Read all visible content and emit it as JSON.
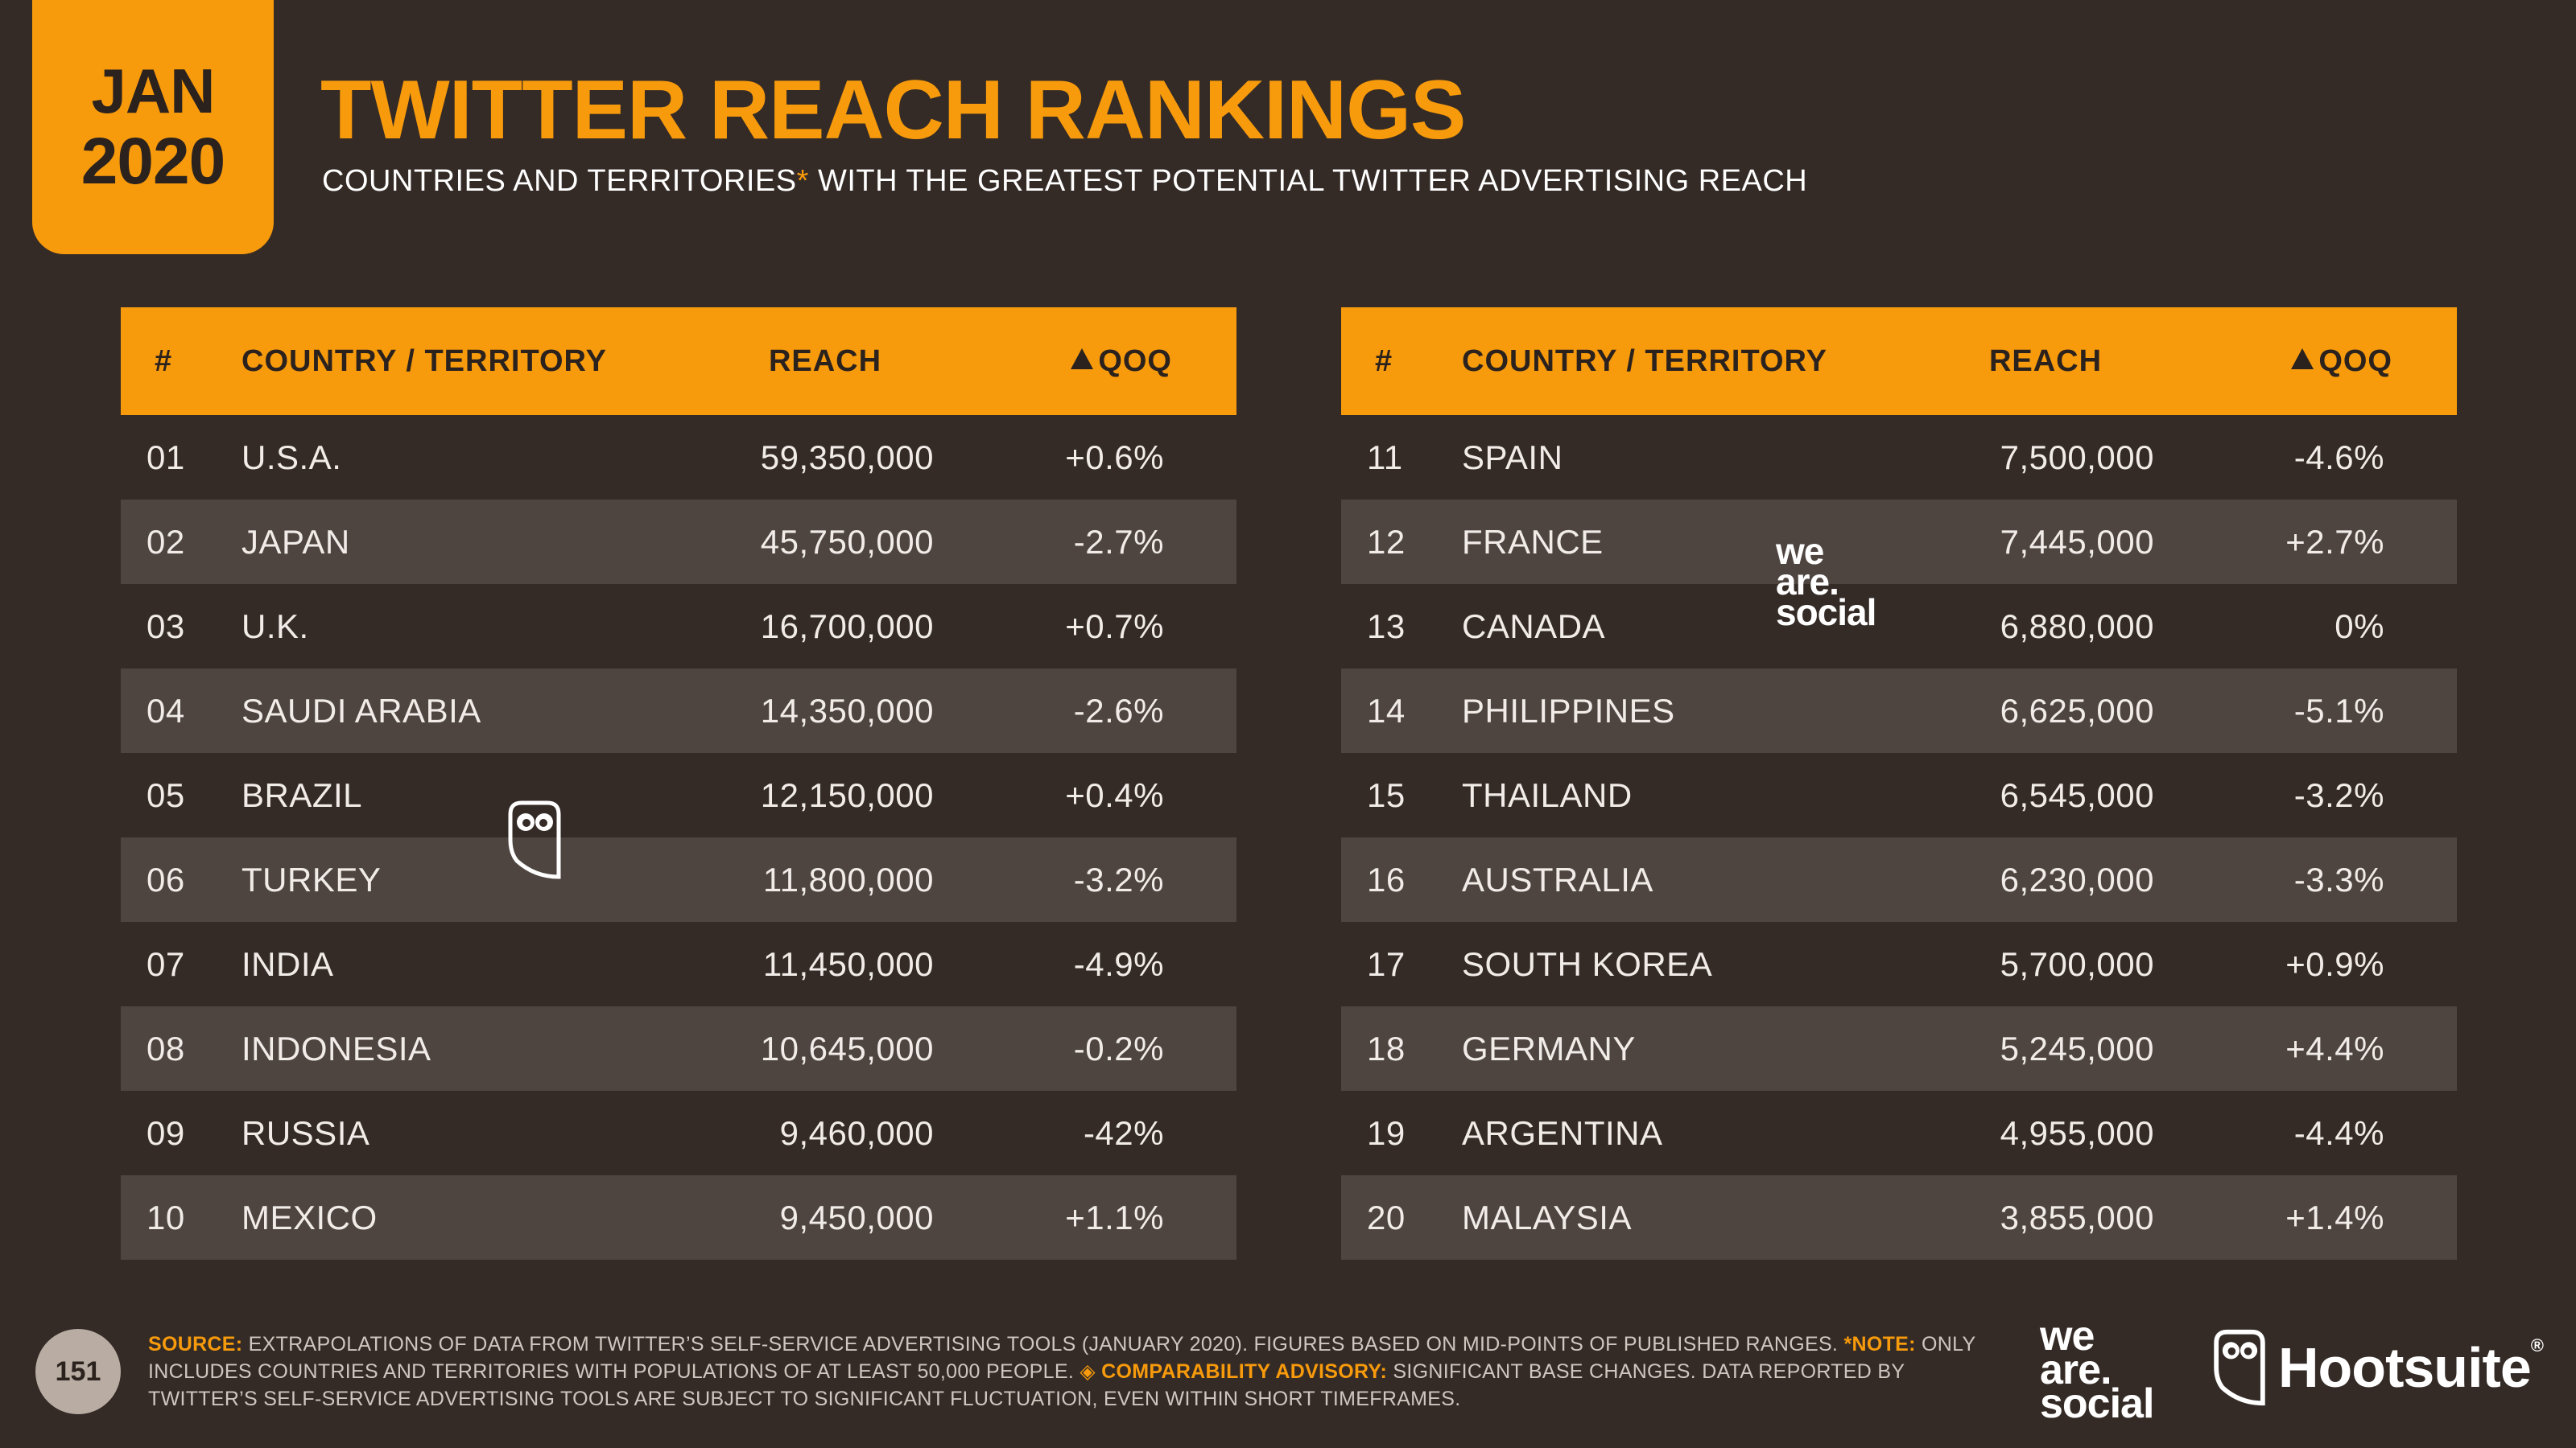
{
  "badge": {
    "month": "JAN",
    "year": "2020"
  },
  "title": "TWITTER REACH RANKINGS",
  "subtitle": {
    "before": "COUNTRIES AND TERRITORIES",
    "star": "*",
    "after": " WITH THE GREATEST POTENTIAL TWITTER ADVERTISING REACH"
  },
  "table_headers": {
    "num": "#",
    "country": "COUNTRY / TERRITORY",
    "reach": "REACH",
    "qoq": "QOQ"
  },
  "chart_data": {
    "type": "table",
    "columns": [
      "#",
      "COUNTRY / TERRITORY",
      "REACH",
      "QOQ"
    ],
    "rows": [
      {
        "rank": "01",
        "country": "U.S.A.",
        "reach": "59,350,000",
        "qoq": "+0.6%"
      },
      {
        "rank": "02",
        "country": "JAPAN",
        "reach": "45,750,000",
        "qoq": "-2.7%"
      },
      {
        "rank": "03",
        "country": "U.K.",
        "reach": "16,700,000",
        "qoq": "+0.7%"
      },
      {
        "rank": "04",
        "country": "SAUDI ARABIA",
        "reach": "14,350,000",
        "qoq": "-2.6%"
      },
      {
        "rank": "05",
        "country": "BRAZIL",
        "reach": "12,150,000",
        "qoq": "+0.4%"
      },
      {
        "rank": "06",
        "country": "TURKEY",
        "reach": "11,800,000",
        "qoq": "-3.2%"
      },
      {
        "rank": "07",
        "country": "INDIA",
        "reach": "11,450,000",
        "qoq": "-4.9%"
      },
      {
        "rank": "08",
        "country": "INDONESIA",
        "reach": "10,645,000",
        "qoq": "-0.2%"
      },
      {
        "rank": "09",
        "country": "RUSSIA",
        "reach": "9,460,000",
        "qoq": "-42%"
      },
      {
        "rank": "10",
        "country": "MEXICO",
        "reach": "9,450,000",
        "qoq": "+1.1%"
      },
      {
        "rank": "11",
        "country": "SPAIN",
        "reach": "7,500,000",
        "qoq": "-4.6%"
      },
      {
        "rank": "12",
        "country": "FRANCE",
        "reach": "7,445,000",
        "qoq": "+2.7%"
      },
      {
        "rank": "13",
        "country": "CANADA",
        "reach": "6,880,000",
        "qoq": "0%"
      },
      {
        "rank": "14",
        "country": "PHILIPPINES",
        "reach": "6,625,000",
        "qoq": "-5.1%"
      },
      {
        "rank": "15",
        "country": "THAILAND",
        "reach": "6,545,000",
        "qoq": "-3.2%"
      },
      {
        "rank": "16",
        "country": "AUSTRALIA",
        "reach": "6,230,000",
        "qoq": "-3.3%"
      },
      {
        "rank": "17",
        "country": "SOUTH KOREA",
        "reach": "5,700,000",
        "qoq": "+0.9%"
      },
      {
        "rank": "18",
        "country": "GERMANY",
        "reach": "5,245,000",
        "qoq": "+4.4%"
      },
      {
        "rank": "19",
        "country": "ARGENTINA",
        "reach": "4,955,000",
        "qoq": "-4.4%"
      },
      {
        "rank": "20",
        "country": "MALAYSIA",
        "reach": "3,855,000",
        "qoq": "+1.4%"
      }
    ]
  },
  "footer": {
    "page": "151",
    "source_label": "SOURCE:",
    "source_text": " EXTRAPOLATIONS OF DATA FROM TWITTER’S SELF-SERVICE ADVERTISING TOOLS (JANUARY 2020). FIGURES BASED ON MID-POINTS OF PUBLISHED RANGES. ",
    "note_label": "*NOTE:",
    "note_text": " ONLY INCLUDES COUNTRIES AND TERRITORIES WITH POPULATIONS OF AT LEAST 50,000 PEOPLE. ",
    "advisory_label": "◈ COMPARABILITY ADVISORY:",
    "advisory_text": " SIGNIFICANT BASE CHANGES. DATA REPORTED BY TWITTER’S SELF-SERVICE ADVERTISING TOOLS ARE SUBJECT TO SIGNIFICANT FLUCTUATION, EVEN WITHIN SHORT TIMEFRAMES."
  },
  "logos": {
    "we_are_social": [
      "we",
      "are.",
      "social"
    ],
    "hootsuite": "Hootsuite",
    "reg_mark": "®"
  },
  "icons": [
    "owl-icon",
    "up-triangle-icon"
  ],
  "colors": {
    "accent": "#f79a0c",
    "background": "#342b26",
    "row_alt": "#4e4541"
  }
}
